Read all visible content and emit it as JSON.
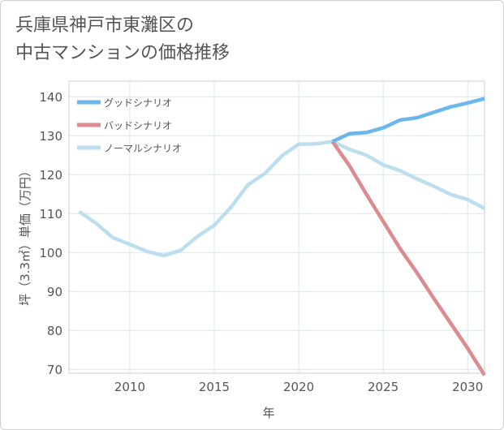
{
  "title_lines": [
    "兵庫県神戸市東灘区の",
    "中古マンションの価格推移"
  ],
  "chart_data": {
    "type": "line",
    "title": "兵庫県神戸市東灘区の中古マンションの価格推移",
    "xlabel": "年",
    "ylabel": "坪（3.3㎡）単価（万円）",
    "xlim": [
      2006.4,
      2031
    ],
    "ylim": [
      69,
      144
    ],
    "x_ticks": [
      2010,
      2015,
      2020,
      2025,
      2030
    ],
    "y_ticks": [
      70,
      80,
      90,
      100,
      110,
      120,
      130,
      140
    ],
    "grid": true,
    "legend_position": "top-left",
    "series": [
      {
        "name": "グッドシナリオ",
        "color": "#6bb6ea",
        "x": [
          2022,
          2023,
          2024,
          2025,
          2026,
          2027,
          2028,
          2029,
          2030,
          2031
        ],
        "values": [
          128.5,
          130.5,
          130.8,
          132,
          134,
          134.6,
          136,
          137.4,
          138.4,
          139.5
        ]
      },
      {
        "name": "バッドシナリオ",
        "color": "#dc8b8e",
        "x": [
          2022,
          2023,
          2024,
          2025,
          2026,
          2027,
          2028,
          2029,
          2030,
          2031
        ],
        "values": [
          128.5,
          122.3,
          115,
          108,
          101,
          94.8,
          88.2,
          81.8,
          75.4,
          68.5
        ]
      },
      {
        "name": "ノーマルシナリオ",
        "color": "#bcdeef",
        "x": [
          2007,
          2008,
          2009,
          2010,
          2011,
          2012,
          2013,
          2014,
          2015,
          2016,
          2017,
          2018,
          2019,
          2020,
          2021,
          2022,
          2023,
          2024,
          2025,
          2026,
          2027,
          2028,
          2029,
          2030,
          2031
        ],
        "values": [
          110.5,
          107.5,
          103.8,
          102.1,
          100.3,
          99.2,
          100.5,
          104.1,
          107,
          111.7,
          117.4,
          120.3,
          124.8,
          127.8,
          127.9,
          128.5,
          126.5,
          125,
          122.5,
          121,
          118.9,
          117,
          114.9,
          113.6,
          111.3
        ]
      }
    ]
  }
}
